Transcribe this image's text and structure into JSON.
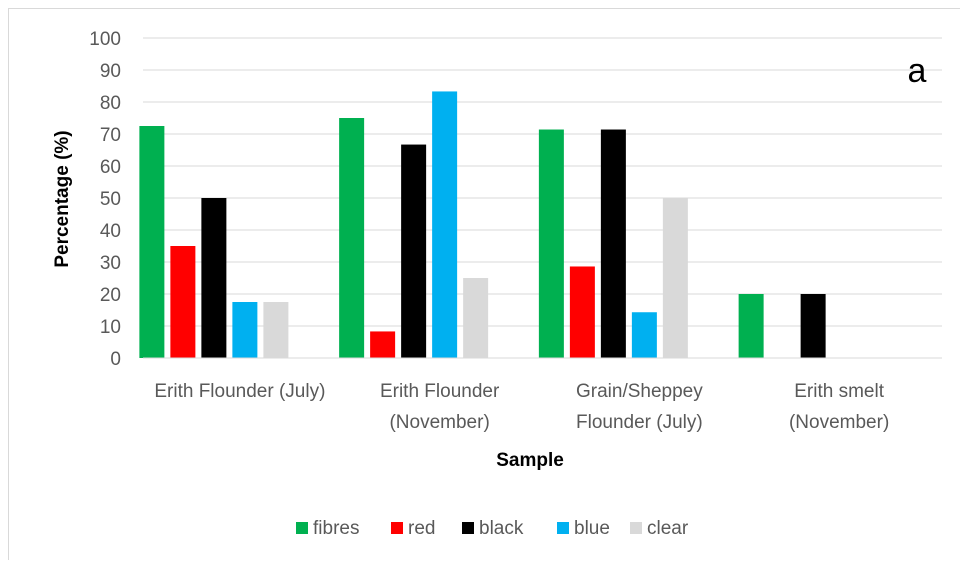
{
  "chart_data": {
    "type": "bar",
    "panel_label": "a",
    "xlabel": "Sample",
    "ylabel": "Percentage (%)",
    "ylim": [
      0,
      100
    ],
    "yticks": [
      0,
      10,
      20,
      30,
      40,
      50,
      60,
      70,
      80,
      90,
      100
    ],
    "grid": true,
    "legend_position": "bottom",
    "categories": [
      [
        "Erith Flounder (July)"
      ],
      [
        "Erith Flounder",
        "(November)"
      ],
      [
        "Grain/Sheppey",
        "Flounder (July)"
      ],
      [
        "Erith smelt",
        "(November)"
      ]
    ],
    "series": [
      {
        "name": "fibres",
        "color": "#00b050",
        "values": [
          72.5,
          75,
          71.4,
          20
        ]
      },
      {
        "name": "red",
        "color": "#ff0000",
        "values": [
          35,
          8.3,
          28.6,
          0
        ]
      },
      {
        "name": "black",
        "color": "#000000",
        "values": [
          50,
          66.7,
          71.4,
          20
        ]
      },
      {
        "name": "blue",
        "color": "#00b0f0",
        "values": [
          17.5,
          83.3,
          14.3,
          0
        ]
      },
      {
        "name": "clear",
        "color": "#d9d9d9",
        "values": [
          17.5,
          25,
          50,
          0
        ]
      }
    ]
  }
}
